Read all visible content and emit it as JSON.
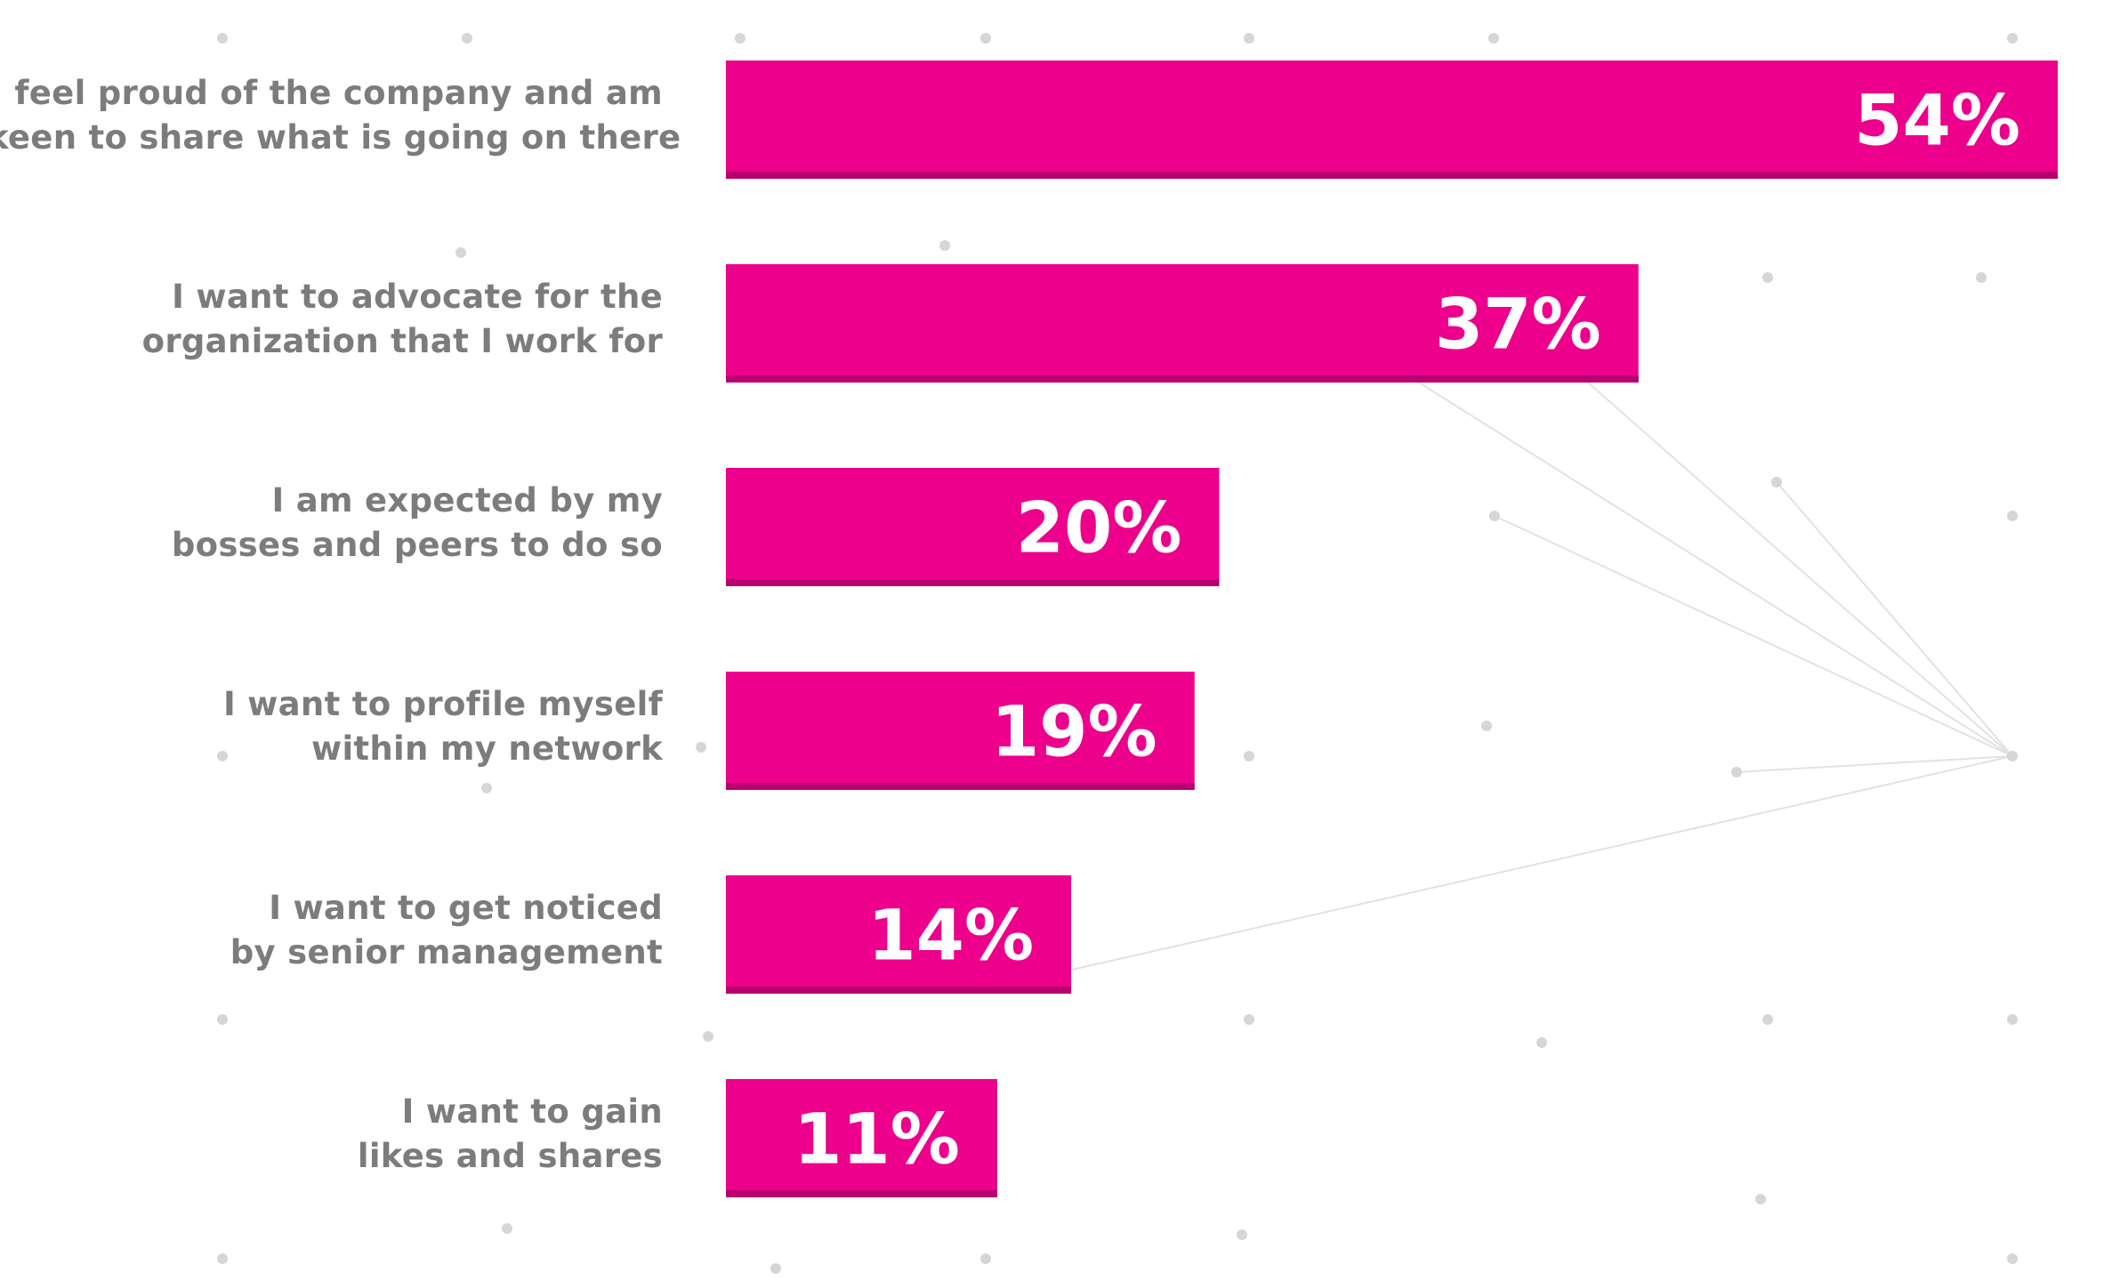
{
  "chart_data": {
    "type": "bar",
    "orientation": "horizontal",
    "unit": "%",
    "xlim": [
      0,
      54
    ],
    "grid": false,
    "categories": [
      [
        "I feel proud of the company and am",
        "keen to share what is going on there"
      ],
      [
        "I want to advocate for the",
        "organization that I work for"
      ],
      [
        "I am expected by my",
        "bosses and peers to do so"
      ],
      [
        "I want to profile myself",
        "within my network"
      ],
      [
        "I want to get noticed",
        "by senior management"
      ],
      [
        "I want to gain",
        "likes and shares"
      ]
    ],
    "values": [
      54,
      37,
      20,
      19,
      14,
      11
    ],
    "value_labels": [
      "54%",
      "37%",
      "20%",
      "19%",
      "14%",
      "11%"
    ]
  },
  "colors": {
    "bar": "#ec008c",
    "bar_shadow": "#b80070",
    "label_text": "#7c7c7c",
    "value_text": "#ffffff",
    "dots": "#d6d6d6",
    "lines": "#e2e2e2"
  }
}
